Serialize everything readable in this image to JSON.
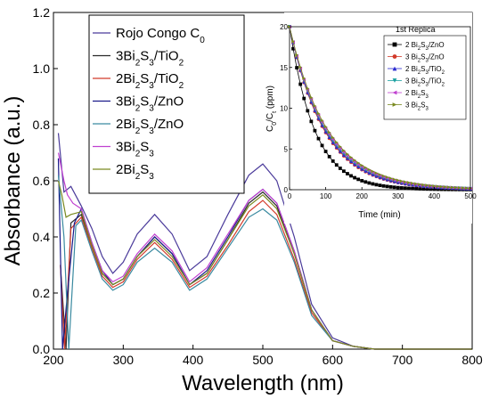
{
  "chart_data": [
    {
      "type": "line",
      "xlabel": "Wavelength (nm)",
      "ylabel": "Absorbance (a.u.)",
      "xlim": [
        200,
        800
      ],
      "ylim": [
        0.0,
        1.2
      ],
      "xticks": [
        "200",
        "300",
        "400",
        "500",
        "600",
        "700",
        "800"
      ],
      "yticks": [
        "0.0",
        "0.2",
        "0.4",
        "0.6",
        "0.8",
        "1.0",
        "1.2"
      ],
      "grid": false,
      "legend_position": "top-center",
      "series": [
        {
          "name": "Rojo Congo C",
          "name_sub": "0",
          "color": "#4a3a9a",
          "x": [
            207,
            215,
            225,
            240,
            255,
            270,
            285,
            300,
            320,
            345,
            370,
            395,
            420,
            450,
            480,
            500,
            520,
            545,
            570,
            600,
            630,
            660,
            700,
            800
          ],
          "y": [
            0.77,
            0.56,
            0.58,
            0.51,
            0.43,
            0.33,
            0.27,
            0.31,
            0.41,
            0.48,
            0.41,
            0.28,
            0.33,
            0.48,
            0.62,
            0.66,
            0.6,
            0.4,
            0.16,
            0.04,
            0.01,
            0.0,
            0.0,
            0.0
          ]
        },
        {
          "name": "3Bi2S3/TiO2",
          "color": "#2a2a2a",
          "x": [
            210,
            218,
            225,
            240,
            255,
            270,
            285,
            300,
            320,
            345,
            370,
            395,
            420,
            450,
            480,
            500,
            520,
            545,
            570,
            600,
            630,
            660,
            700,
            800
          ],
          "y": [
            0.3,
            0.0,
            0.45,
            0.48,
            0.37,
            0.27,
            0.23,
            0.25,
            0.33,
            0.4,
            0.34,
            0.23,
            0.27,
            0.39,
            0.52,
            0.56,
            0.51,
            0.34,
            0.14,
            0.03,
            0.01,
            0.0,
            0.0,
            0.0
          ]
        },
        {
          "name": "2Bi2S3/TiO2",
          "color": "#d23a2a",
          "x": [
            210,
            216,
            225,
            240,
            255,
            270,
            285,
            300,
            320,
            345,
            370,
            395,
            420,
            450,
            480,
            500,
            520,
            545,
            570,
            600,
            630,
            660,
            700,
            800
          ],
          "y": [
            0.3,
            0.0,
            0.43,
            0.47,
            0.36,
            0.26,
            0.22,
            0.24,
            0.32,
            0.38,
            0.32,
            0.22,
            0.26,
            0.37,
            0.49,
            0.53,
            0.48,
            0.32,
            0.13,
            0.03,
            0.01,
            0.0,
            0.0,
            0.0
          ]
        },
        {
          "name": "3Bi2S3/ZnO",
          "color": "#1a1a8a",
          "x": [
            207,
            213,
            220,
            230,
            240,
            255,
            270,
            285,
            300,
            320,
            345,
            370,
            395,
            420,
            450,
            480,
            500,
            520,
            545,
            570,
            600,
            630,
            660,
            700,
            800
          ],
          "y": [
            0.68,
            0.0,
            0.2,
            0.45,
            0.5,
            0.38,
            0.28,
            0.23,
            0.25,
            0.33,
            0.4,
            0.34,
            0.23,
            0.28,
            0.4,
            0.53,
            0.57,
            0.52,
            0.35,
            0.14,
            0.03,
            0.01,
            0.0,
            0.0,
            0.0
          ]
        },
        {
          "name": "2Bi2S3/ZnO",
          "color": "#3a8aa0",
          "x": [
            207,
            215,
            222,
            232,
            240,
            255,
            270,
            285,
            300,
            320,
            345,
            370,
            395,
            420,
            450,
            480,
            500,
            520,
            545,
            570,
            600,
            630,
            660,
            700,
            800
          ],
          "y": [
            0.62,
            0.4,
            0.0,
            0.44,
            0.46,
            0.35,
            0.25,
            0.21,
            0.23,
            0.31,
            0.36,
            0.31,
            0.21,
            0.25,
            0.36,
            0.47,
            0.5,
            0.46,
            0.31,
            0.12,
            0.03,
            0.01,
            0.0,
            0.0,
            0.0
          ]
        },
        {
          "name": "3Bi2S3",
          "color": "#c040d0",
          "x": [
            207,
            215,
            220,
            228,
            240,
            255,
            270,
            285,
            300,
            320,
            345,
            370,
            395,
            420,
            450,
            480,
            500,
            520,
            545,
            570,
            600,
            630,
            660,
            700,
            800
          ],
          "y": [
            0.7,
            0.6,
            0.55,
            0.52,
            0.5,
            0.38,
            0.28,
            0.24,
            0.26,
            0.34,
            0.41,
            0.35,
            0.24,
            0.29,
            0.41,
            0.53,
            0.57,
            0.52,
            0.35,
            0.14,
            0.03,
            0.01,
            0.0,
            0.0,
            0.0
          ]
        },
        {
          "name": "2Bi2S3",
          "color": "#7a8a20",
          "x": [
            207,
            212,
            218,
            225,
            240,
            255,
            270,
            285,
            300,
            320,
            345,
            370,
            395,
            420,
            450,
            480,
            500,
            520,
            545,
            570,
            600,
            630,
            660,
            700,
            800
          ],
          "y": [
            0.6,
            0.55,
            0.47,
            0.48,
            0.49,
            0.37,
            0.27,
            0.23,
            0.25,
            0.33,
            0.39,
            0.33,
            0.23,
            0.27,
            0.39,
            0.51,
            0.55,
            0.5,
            0.34,
            0.14,
            0.03,
            0.01,
            0.0,
            0.0,
            0.0
          ]
        }
      ]
    },
    {
      "type": "line",
      "title": "1st Replica",
      "xlabel": "Time (min)",
      "ylabel": "C0/Ct (ppm)",
      "ylabel_parts": {
        "c": "C",
        "s0": "0",
        "slash": "/C",
        "st": "t",
        "unit": " (ppm)"
      },
      "xlim": [
        0,
        500
      ],
      "ylim": [
        0,
        20
      ],
      "xticks": [
        "0",
        "100",
        "200",
        "300",
        "400",
        "500"
      ],
      "yticks": [
        "0",
        "5",
        "10",
        "15",
        "20"
      ],
      "grid": false,
      "legend_position": "top-right",
      "x": [
        0,
        10,
        20,
        30,
        40,
        50,
        60,
        70,
        80,
        90,
        100,
        110,
        120,
        130,
        140,
        150,
        160,
        170,
        180,
        190,
        200,
        210,
        220,
        230,
        240,
        250,
        260,
        270,
        280,
        290,
        300,
        310,
        320,
        330,
        340,
        350,
        360,
        370,
        380,
        390,
        400,
        410,
        420,
        430,
        440,
        450,
        460,
        470,
        480,
        490,
        500
      ],
      "series": [
        {
          "name": "2 Bi2S3/ZnO",
          "color": "#000000",
          "marker": "square",
          "c0": 20,
          "k": 0.0145,
          "offset": 0
        },
        {
          "name": "3 Bi2S3/ZnO",
          "color": "#d23a2a",
          "marker": "circle",
          "c0": 20,
          "k": 0.0105,
          "offset": 0
        },
        {
          "name": "2 Bi2S3/TiO2",
          "color": "#2a2ad0",
          "marker": "triangle-up",
          "c0": 20,
          "k": 0.0103,
          "offset": 0
        },
        {
          "name": "3 Bi2S3/TiO2",
          "color": "#1aa0a0",
          "marker": "triangle-down",
          "c0": 20,
          "k": 0.01,
          "offset": 0
        },
        {
          "name": "2 Bi2S3",
          "color": "#c040d0",
          "marker": "triangle-left",
          "c0": 20,
          "k": 0.0098,
          "offset": 0
        },
        {
          "name": "3 Bi2S3",
          "color": "#7a8a20",
          "marker": "triangle-right",
          "c0": 20,
          "k": 0.0095,
          "offset": 0
        }
      ]
    }
  ]
}
